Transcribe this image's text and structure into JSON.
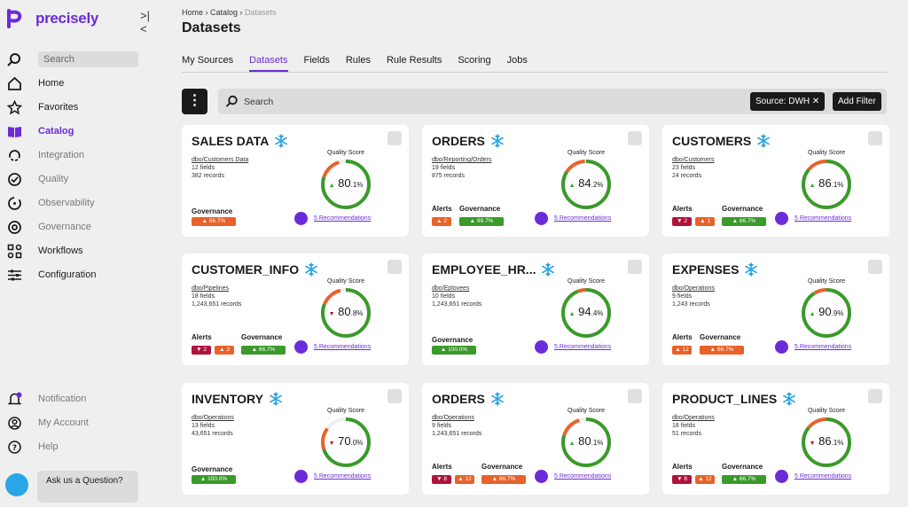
{
  "app": {
    "brand": "precisely",
    "accent": "#6c2bd9"
  },
  "sidebar": {
    "search_placeholder": "Search",
    "items": [
      {
        "label": "Home"
      },
      {
        "label": "Favorites"
      },
      {
        "label": "Catalog"
      },
      {
        "label": "Integration"
      },
      {
        "label": "Quality"
      },
      {
        "label": "Observability"
      },
      {
        "label": "Governance"
      },
      {
        "label": "Workflows"
      },
      {
        "label": "Configuration"
      }
    ],
    "bottom": [
      {
        "label": "Notification"
      },
      {
        "label": "My Account"
      },
      {
        "label": "Help"
      }
    ],
    "ask": "Ask us a Question?"
  },
  "breadcrumb": {
    "home": "Home",
    "catalog": "Catalog",
    "current": "Datasets"
  },
  "page_title": "Datasets",
  "tabs": [
    "My Sources",
    "Datasets",
    "Fields",
    "Rules",
    "Rule Results",
    "Scoring",
    "Jobs"
  ],
  "search": {
    "placeholder": "Search",
    "filter_chip": "Source: DWH",
    "add_filter": "Add Filter"
  },
  "labels": {
    "quality_score": "Quality Score",
    "alerts": "Alerts",
    "governance": "Governance",
    "recommendations": "5 Recommendations"
  },
  "cards": [
    {
      "title": "SALES DATA",
      "db": "dbo",
      "path": "Customers Data",
      "fields": "12 fields",
      "records": "382 records",
      "score": "80",
      "dec": ".1%",
      "trend": "up",
      "progress": 0.8,
      "alerts": [],
      "gov": "66.7%",
      "gov_color": "#e8622a"
    },
    {
      "title": "ORDERS",
      "db": "dbo",
      "path": "Reporting/Orders",
      "fields": "19 fields",
      "records": "875 records",
      "score": "84",
      "dec": ".2%",
      "trend": "up",
      "progress": 0.84,
      "alerts": [
        {
          "text": "2",
          "color": "#e8622a",
          "dir": "up"
        }
      ],
      "gov": "99.7%",
      "gov_color": "#3a9a2a"
    },
    {
      "title": "CUSTOMERS",
      "db": "dbo",
      "path": "Customers",
      "fields": "23 fields",
      "records": "24 records",
      "score": "86",
      "dec": ".1%",
      "trend": "up",
      "progress": 0.86,
      "alerts": [
        {
          "text": "2",
          "color": "#b0133a",
          "dir": "down"
        },
        {
          "text": "1",
          "color": "#e8622a",
          "dir": "up"
        }
      ],
      "gov": "66.7%",
      "gov_color": "#3a9a2a"
    },
    {
      "title": "CUSTOMER_INFO",
      "db": "dbo",
      "path": "Pipelines",
      "fields": "18 fields",
      "records": "1,243,651 records",
      "score": "80",
      "dec": ".8%",
      "trend": "down",
      "progress": 0.81,
      "alerts": [
        {
          "text": "2",
          "color": "#b0133a",
          "dir": "down"
        },
        {
          "text": "3",
          "color": "#e8622a",
          "dir": "up"
        }
      ],
      "gov": "66.7%",
      "gov_color": "#3a9a2a"
    },
    {
      "title": "EMPLOYEE_HR...",
      "db": "dbo",
      "path": "Eplovees",
      "fields": "10 fields",
      "records": "1,243,651 records",
      "score": "94",
      "dec": ".4%",
      "trend": "up",
      "progress": 0.94,
      "alerts": [],
      "gov": "100.0%",
      "gov_color": "#3a9a2a"
    },
    {
      "title": "EXPENSES",
      "db": "dbo",
      "path": "Operations",
      "fields": "9 fields",
      "records": "1,243 records",
      "score": "90",
      "dec": ".9%",
      "trend": "up",
      "progress": 0.91,
      "alerts": [
        {
          "text": "12",
          "color": "#e8622a",
          "dir": "up"
        }
      ],
      "gov": "66.7%",
      "gov_color": "#e8622a"
    },
    {
      "title": "INVENTORY",
      "db": "dbo",
      "path": "Operations",
      "fields": "13 fields",
      "records": "43,651 records",
      "score": "70",
      "dec": ".0%",
      "trend": "down",
      "progress": 0.7,
      "alerts": [],
      "gov": "100.0%",
      "gov_color": "#3a9a2a"
    },
    {
      "title": "ORDERS",
      "db": "dbo",
      "path": "Operations",
      "fields": "9 fields",
      "records": "1,243,651 records",
      "score": "80",
      "dec": ".1%",
      "trend": "up",
      "progress": 0.8,
      "alerts": [
        {
          "text": "8",
          "color": "#b0133a",
          "dir": "down"
        },
        {
          "text": "12",
          "color": "#e8622a",
          "dir": "up"
        }
      ],
      "gov": "66.7%",
      "gov_color": "#e8622a"
    },
    {
      "title": "PRODUCT_LINES",
      "db": "dbo",
      "path": "Operations",
      "fields": "18 fields",
      "records": "51 records",
      "score": "86",
      "dec": ".1%",
      "trend": "down",
      "progress": 0.86,
      "alerts": [
        {
          "text": "8",
          "color": "#b0133a",
          "dir": "down"
        },
        {
          "text": "12",
          "color": "#e8622a",
          "dir": "up"
        }
      ],
      "gov": "66.7%",
      "gov_color": "#3a9a2a"
    }
  ]
}
